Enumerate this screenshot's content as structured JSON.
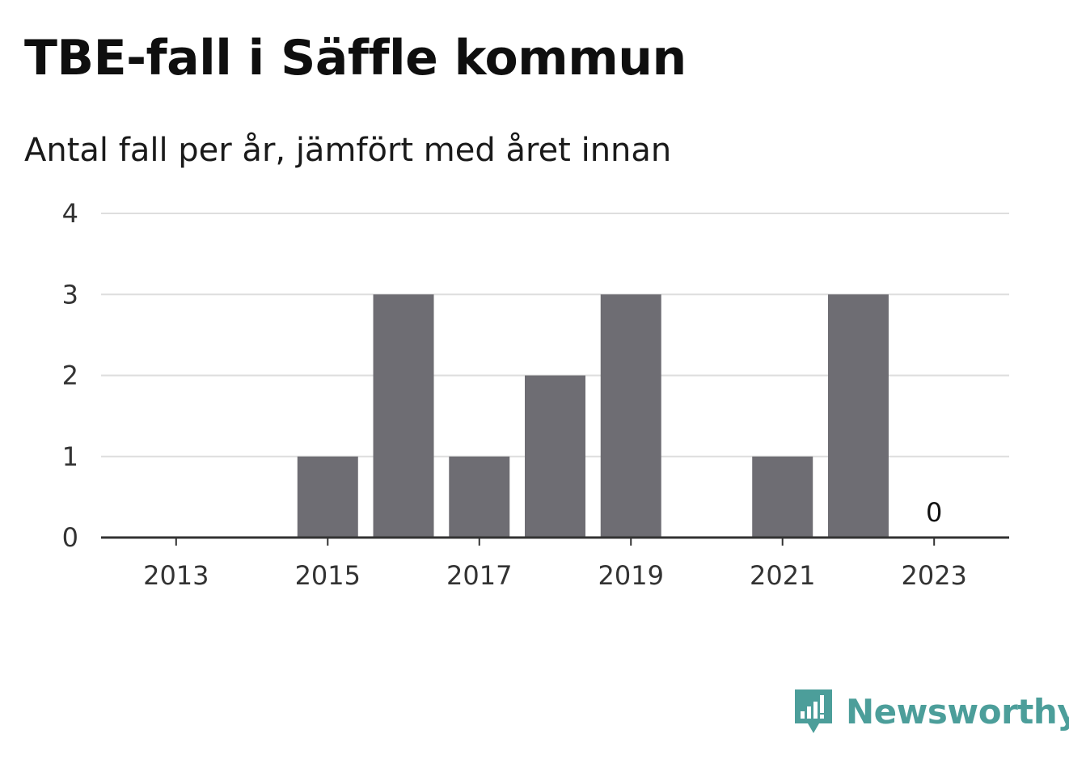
{
  "chart_data": {
    "type": "bar",
    "title": "TBE-fall i Säffle kommun",
    "subtitle": "Antal fall per år, jämfört med året innan",
    "xlabel": "",
    "ylabel": "",
    "categories": [
      2013,
      2014,
      2015,
      2016,
      2017,
      2018,
      2019,
      2020,
      2021,
      2022,
      2023
    ],
    "values": [
      0,
      0,
      1,
      3,
      1,
      2,
      3,
      0,
      1,
      3,
      0
    ],
    "ylim": [
      0,
      4
    ],
    "y_ticks": [
      "0",
      "1",
      "2",
      "3",
      "4"
    ],
    "x_ticks": [
      "2013",
      "2015",
      "2017",
      "2019",
      "2021",
      "2023"
    ],
    "annotations": [
      {
        "category": 2023,
        "text": "0"
      }
    ],
    "grid": true,
    "bar_color": "#6e6d73"
  },
  "branding": {
    "name": "Newsworthy",
    "icon": "newsworthy-bar-chart-icon",
    "color": "#4c9e9a"
  }
}
